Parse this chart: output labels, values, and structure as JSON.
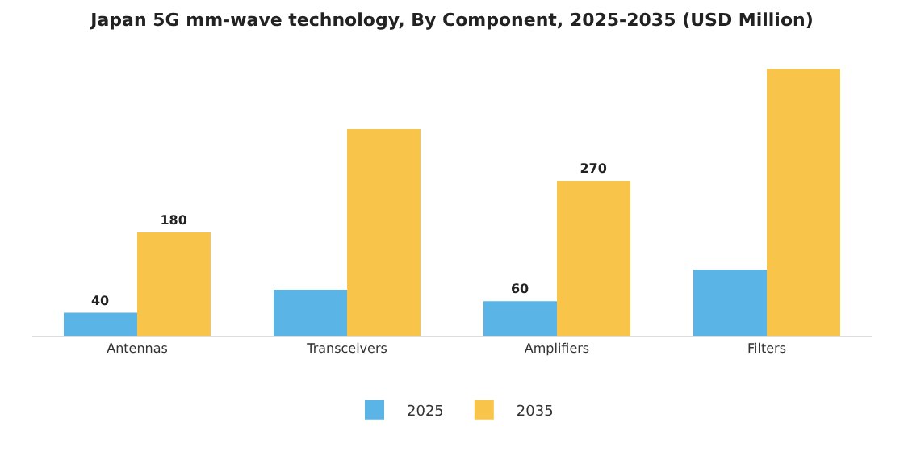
{
  "chart_data": {
    "type": "bar",
    "title": "Japan 5G mm-wave technology, By Component, 2025-2035 (USD Million)",
    "categories": [
      "Antennas",
      "Transceivers",
      "Amplifiers",
      "Filters"
    ],
    "series": [
      {
        "name": "2025",
        "color": "#5ab4e5",
        "values": [
          40,
          80,
          60,
          115
        ],
        "value_labels": [
          "40",
          null,
          "60",
          null
        ]
      },
      {
        "name": "2035",
        "color": "#f9c44a",
        "values": [
          180,
          360,
          270,
          465
        ],
        "value_labels": [
          "180",
          null,
          "270",
          null
        ]
      }
    ],
    "legend": "bottom",
    "grid": false
  }
}
